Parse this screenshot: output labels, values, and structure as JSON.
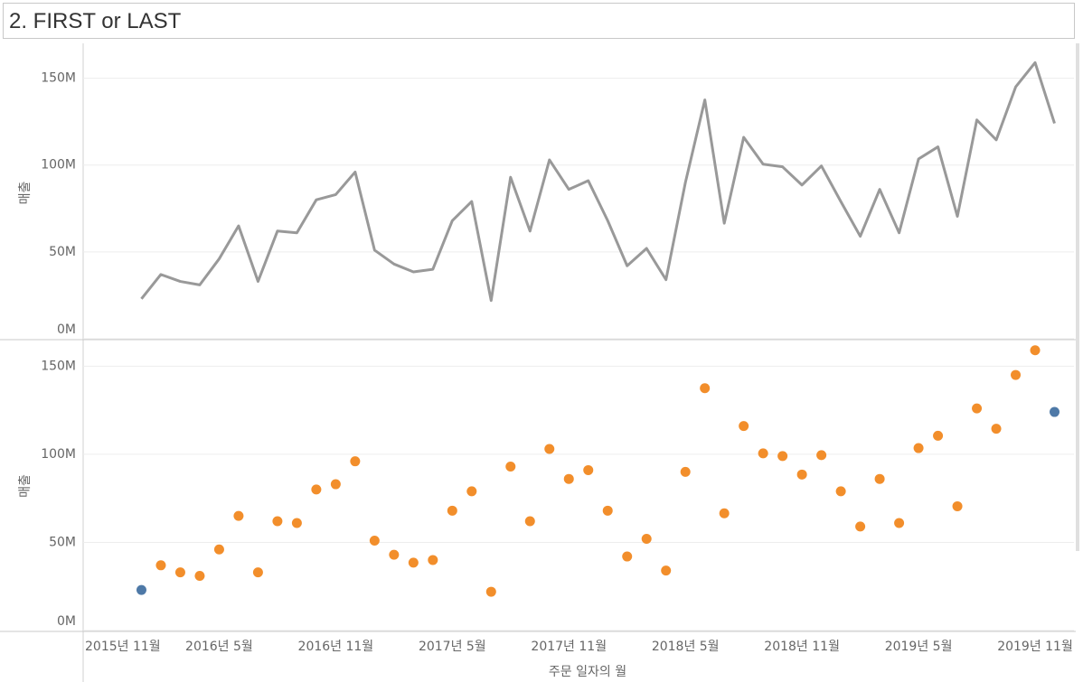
{
  "title": "2. FIRST or LAST",
  "chart_data": [
    {
      "type": "line",
      "ylabel": "매출",
      "color": "#999999",
      "x": [
        "2016-01",
        "2016-02",
        "2016-03",
        "2016-04",
        "2016-05",
        "2016-06",
        "2016-07",
        "2016-08",
        "2016-09",
        "2016-10",
        "2016-11",
        "2016-12",
        "2017-01",
        "2017-02",
        "2017-03",
        "2017-04",
        "2017-05",
        "2017-06",
        "2017-07",
        "2017-08",
        "2017-09",
        "2017-10",
        "2017-11",
        "2017-12",
        "2018-01",
        "2018-02",
        "2018-03",
        "2018-04",
        "2018-05",
        "2018-06",
        "2018-07",
        "2018-08",
        "2018-09",
        "2018-10",
        "2018-11",
        "2018-12",
        "2019-01",
        "2019-02",
        "2019-03",
        "2019-04",
        "2019-05",
        "2019-06",
        "2019-07",
        "2019-08",
        "2019-09",
        "2019-10",
        "2019-11",
        "2019-12"
      ],
      "values": [
        23,
        37,
        33,
        31,
        46,
        65,
        33,
        62,
        61,
        80,
        83,
        96,
        51,
        43,
        38.5,
        40,
        68,
        79,
        22,
        93,
        62,
        103,
        86,
        91,
        68,
        42,
        52,
        34,
        90,
        137.5,
        66.5,
        116,
        100.5,
        99,
        88.5,
        99.5,
        79,
        59,
        86,
        61,
        103.5,
        110.5,
        70.5,
        126,
        114.5,
        145,
        159,
        124
      ],
      "xlim": [
        "2015-10",
        "2020-01"
      ],
      "ylim": [
        0,
        168
      ],
      "yticks": [
        {
          "value": 0,
          "label": "0M"
        },
        {
          "value": 50,
          "label": "50M"
        },
        {
          "value": 100,
          "label": "100M"
        },
        {
          "value": 150,
          "label": "150M"
        }
      ],
      "grid": true
    },
    {
      "type": "scatter",
      "ylabel": "매출",
      "xlabel": "주문 일자의 월",
      "color": "#f28e2b",
      "highlight_color": "#4e79a7",
      "x": [
        "2016-01",
        "2016-02",
        "2016-03",
        "2016-04",
        "2016-05",
        "2016-06",
        "2016-07",
        "2016-08",
        "2016-09",
        "2016-10",
        "2016-11",
        "2016-12",
        "2017-01",
        "2017-02",
        "2017-03",
        "2017-04",
        "2017-05",
        "2017-06",
        "2017-07",
        "2017-08",
        "2017-09",
        "2017-10",
        "2017-11",
        "2017-12",
        "2018-01",
        "2018-02",
        "2018-03",
        "2018-04",
        "2018-05",
        "2018-06",
        "2018-07",
        "2018-08",
        "2018-09",
        "2018-10",
        "2018-11",
        "2018-12",
        "2019-01",
        "2019-02",
        "2019-03",
        "2019-04",
        "2019-05",
        "2019-06",
        "2019-07",
        "2019-08",
        "2019-09",
        "2019-10",
        "2019-11",
        "2019-12"
      ],
      "values": [
        23,
        37,
        33,
        31,
        46,
        65,
        33,
        62,
        61,
        80,
        83,
        96,
        51,
        43,
        38.5,
        40,
        68,
        79,
        22,
        93,
        62,
        103,
        86,
        91,
        68,
        42,
        52,
        34,
        90,
        137.5,
        66.5,
        116,
        100.5,
        99,
        88.5,
        99.5,
        79,
        59,
        86,
        61,
        103.5,
        110.5,
        70.5,
        126,
        114.5,
        145,
        159,
        124
      ],
      "xlim": [
        "2015-10",
        "2020-01"
      ],
      "ylim": [
        0,
        164
      ],
      "yticks": [
        {
          "value": 0,
          "label": "0M"
        },
        {
          "value": 50,
          "label": "50M"
        },
        {
          "value": 100,
          "label": "100M"
        },
        {
          "value": 150,
          "label": "150M"
        }
      ],
      "xticks": [
        {
          "value": "2015-11",
          "label": "2015년 11월"
        },
        {
          "value": "2016-05",
          "label": "2016년 5월"
        },
        {
          "value": "2016-11",
          "label": "2016년 11월"
        },
        {
          "value": "2017-05",
          "label": "2017년 5월"
        },
        {
          "value": "2017-11",
          "label": "2017년 11월"
        },
        {
          "value": "2018-05",
          "label": "2018년 5월"
        },
        {
          "value": "2018-11",
          "label": "2018년 11월"
        },
        {
          "value": "2019-05",
          "label": "2019년 5월"
        },
        {
          "value": "2019-11",
          "label": "2019년 11월"
        }
      ],
      "grid": true
    }
  ]
}
